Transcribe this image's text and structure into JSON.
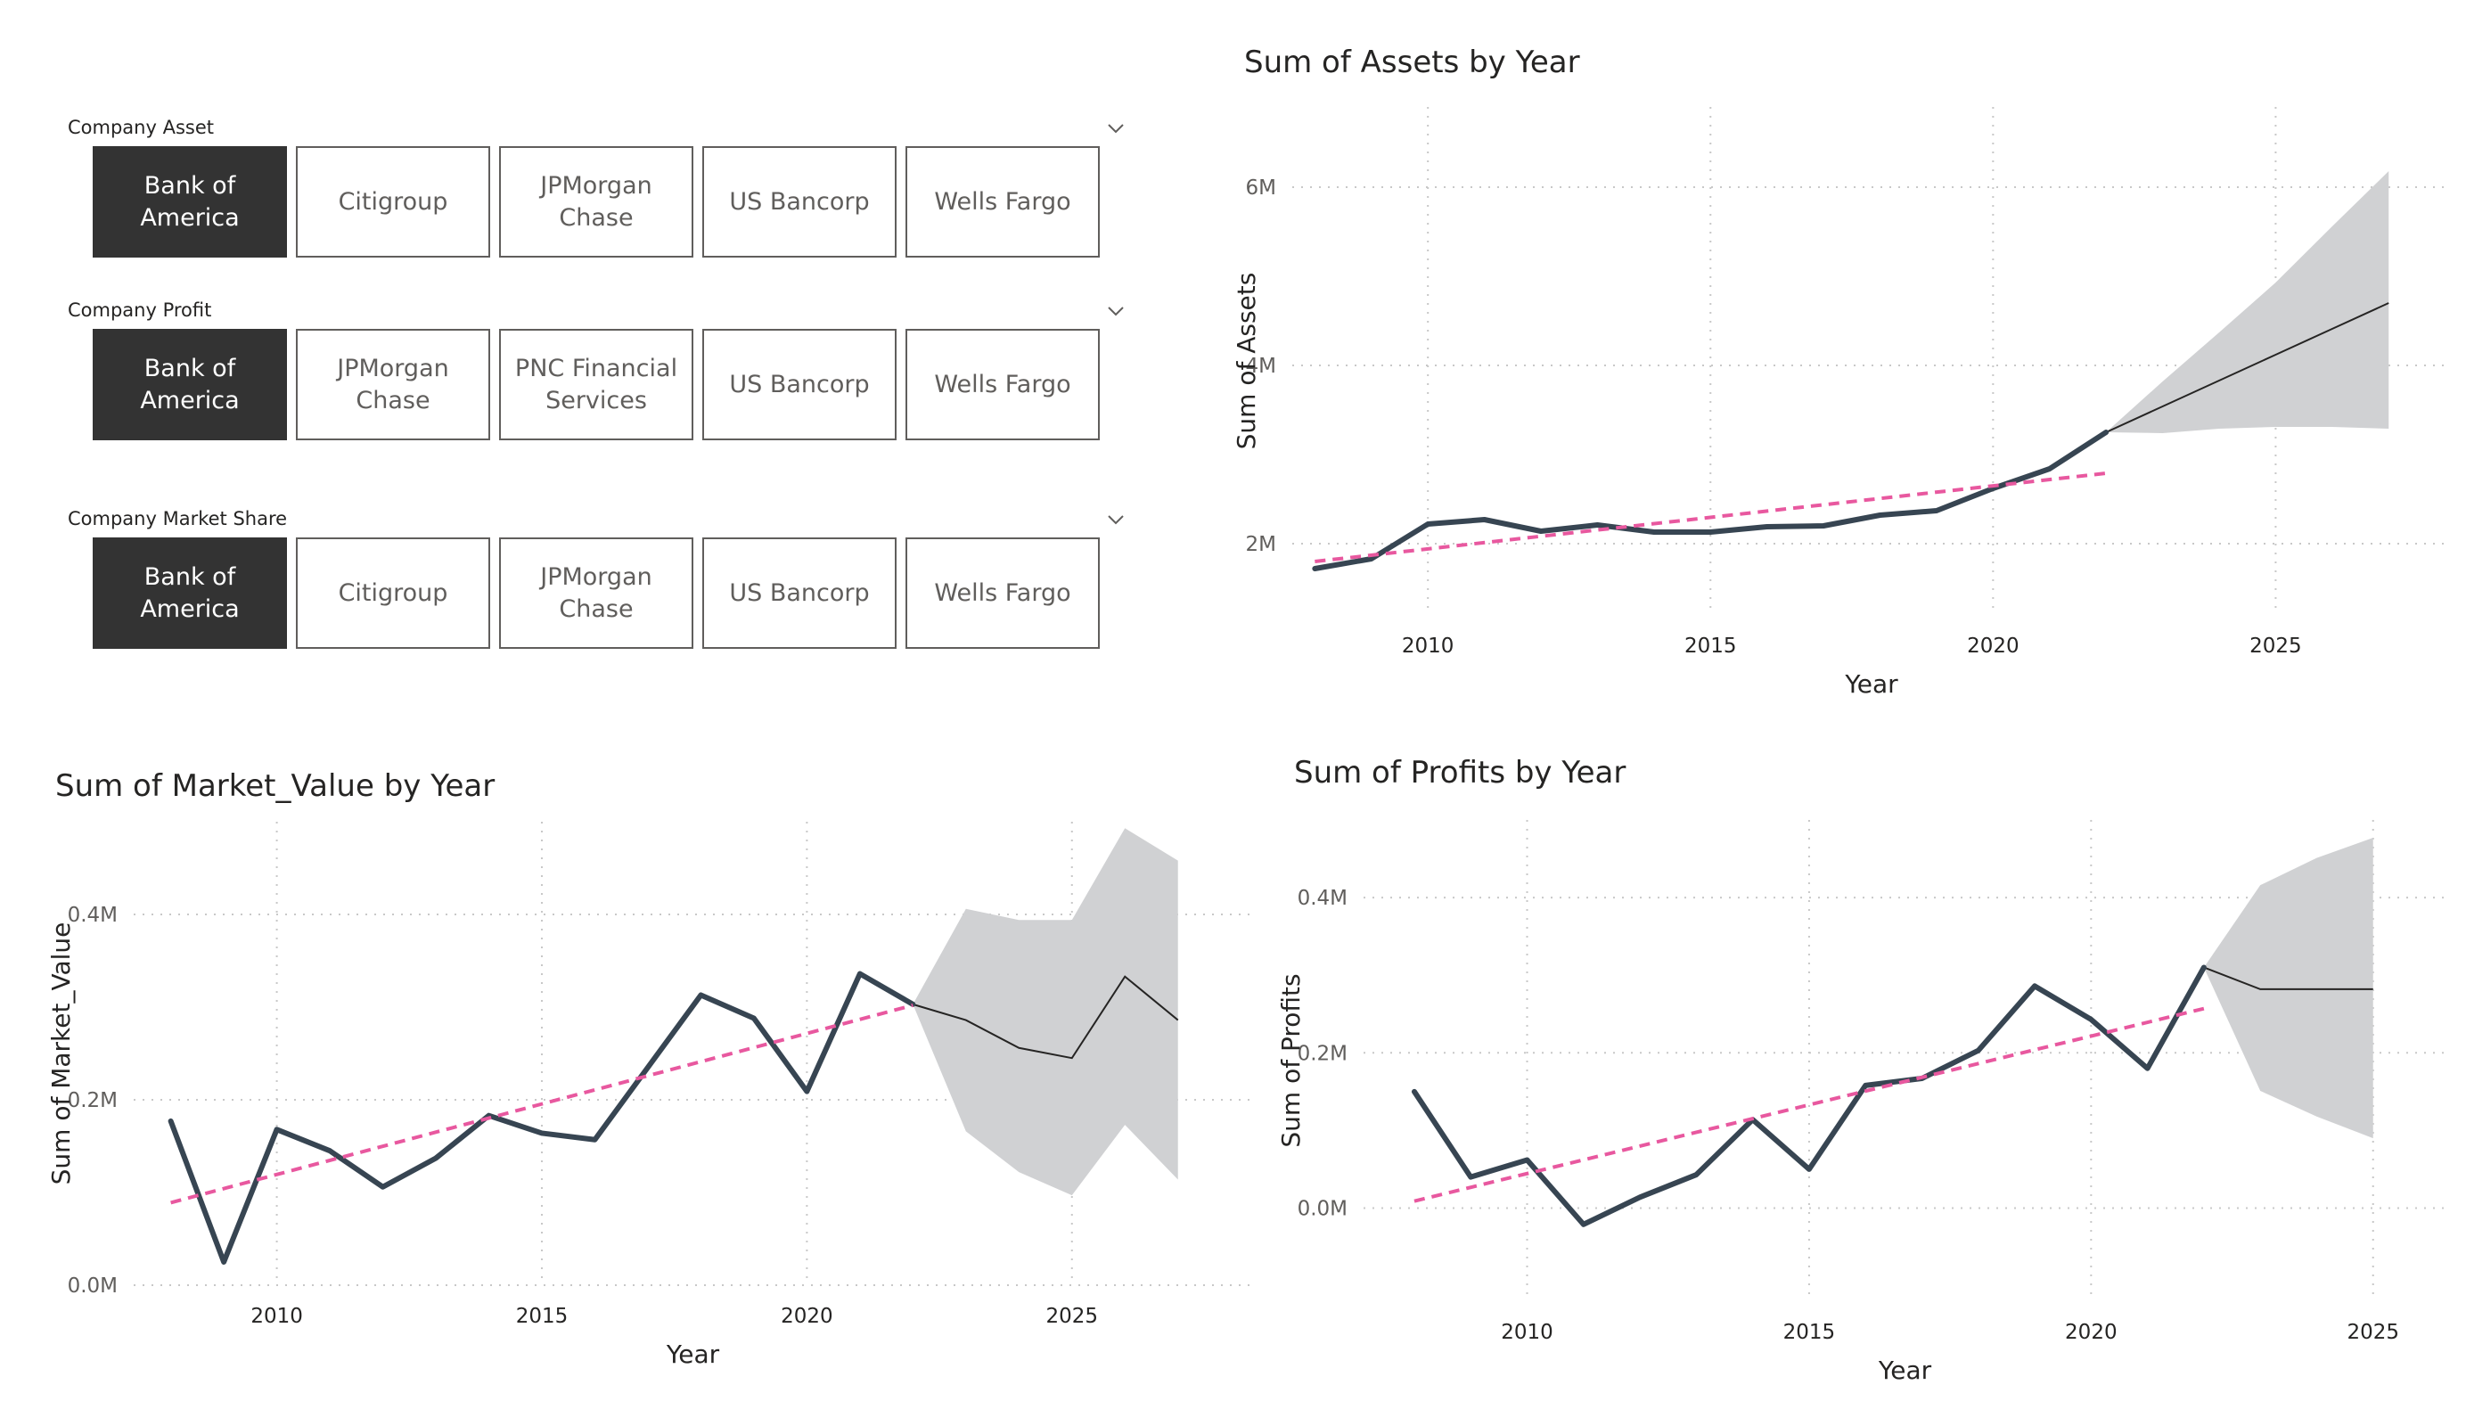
{
  "slicers": [
    {
      "label": "Company Asset",
      "options": [
        "Bank of America",
        "Citigroup",
        "JPMorgan Chase",
        "US Bancorp",
        "Wells Fargo"
      ],
      "selected": 0
    },
    {
      "label": "Company Profit",
      "options": [
        "Bank of America",
        "JPMorgan Chase",
        "PNC Financial Services",
        "US Bancorp",
        "Wells Fargo"
      ],
      "selected": 0
    },
    {
      "label": "Company Market Share",
      "options": [
        "Bank of America",
        "Citigroup",
        "JPMorgan Chase",
        "US Bancorp",
        "Wells Fargo"
      ],
      "selected": 0
    }
  ],
  "colors": {
    "line": "#374552",
    "trend": "#E8589F",
    "forecast_band": "#D0D1D3",
    "forecast_line": "#252423",
    "grid": "#C8C8C8"
  },
  "chart_data": [
    {
      "id": "assets",
      "type": "line",
      "title": "Sum of Assets by Year",
      "xlabel": "Year",
      "ylabel": "Sum of Assets",
      "xlim": [
        2007.6,
        2028.1
      ],
      "ylim": [
        1.2,
        6.9
      ],
      "x_ticks": [
        2010,
        2015,
        2020,
        2025
      ],
      "y_ticks": [
        {
          "v": 2,
          "label": "2M"
        },
        {
          "v": 4,
          "label": "4M"
        },
        {
          "v": 6,
          "label": "6M"
        }
      ],
      "grid": true,
      "series": [
        {
          "x": [
            2008,
            2009,
            2010,
            2011,
            2012,
            2013,
            2014,
            2015,
            2016,
            2017,
            2018,
            2019,
            2020,
            2021,
            2022
          ],
          "y": [
            1.72,
            1.83,
            2.22,
            2.27,
            2.14,
            2.21,
            2.13,
            2.13,
            2.19,
            2.2,
            2.32,
            2.37,
            2.62,
            2.84,
            3.25
          ]
        }
      ],
      "trend": {
        "x": [
          2008,
          2022
        ],
        "y": [
          1.8,
          2.79
        ]
      },
      "forecast": {
        "x": [
          2022,
          2023,
          2024,
          2025,
          2026,
          2027
        ],
        "y": [
          3.25,
          3.54,
          3.83,
          4.12,
          4.41,
          4.7
        ],
        "lower": [
          3.25,
          3.24,
          3.29,
          3.31,
          3.31,
          3.29
        ],
        "upper": [
          3.25,
          3.82,
          4.37,
          4.93,
          5.56,
          6.18
        ]
      }
    },
    {
      "id": "market_value",
      "type": "line",
      "title": "Sum of Market_Value by Year",
      "xlabel": "Year",
      "ylabel": "Sum of Market_Value",
      "xlim": [
        2007.3,
        2028.4
      ],
      "ylim": [
        0.0,
        0.5
      ],
      "x_ticks": [
        2010,
        2015,
        2020,
        2025
      ],
      "y_ticks": [
        {
          "v": 0.0,
          "label": "0.0M"
        },
        {
          "v": 0.2,
          "label": "0.2M"
        },
        {
          "v": 0.4,
          "label": "0.4M"
        }
      ],
      "grid": true,
      "series": [
        {
          "x": [
            2008,
            2009,
            2010,
            2011,
            2012,
            2013,
            2014,
            2015,
            2016,
            2017,
            2018,
            2019,
            2020,
            2021,
            2022
          ],
          "y": [
            0.177,
            0.025,
            0.168,
            0.145,
            0.106,
            0.137,
            0.183,
            0.164,
            0.157,
            0.235,
            0.313,
            0.288,
            0.209,
            0.336,
            0.303
          ]
        }
      ],
      "trend": {
        "x": [
          2008,
          2022
        ],
        "y": [
          0.089,
          0.302
        ]
      },
      "forecast": {
        "x": [
          2022,
          2023,
          2024,
          2025,
          2026,
          2027
        ],
        "y": [
          0.303,
          0.286,
          0.256,
          0.245,
          0.333,
          0.286
        ],
        "lower": [
          0.303,
          0.166,
          0.122,
          0.097,
          0.173,
          0.114
        ],
        "upper": [
          0.303,
          0.406,
          0.394,
          0.394,
          0.493,
          0.458
        ]
      }
    },
    {
      "id": "profits",
      "type": "line",
      "title": "Sum of Profits by Year",
      "xlabel": "Year",
      "ylabel": "Sum of Profits",
      "xlim": [
        2007.1,
        2026.3
      ],
      "ylim": [
        -0.12,
        0.5
      ],
      "x_ticks": [
        2010,
        2015,
        2020,
        2025
      ],
      "y_ticks": [
        {
          "v": 0.0,
          "label": "0.0M"
        },
        {
          "v": 0.2,
          "label": "0.2M"
        },
        {
          "v": 0.4,
          "label": "0.4M"
        }
      ],
      "grid": true,
      "series": [
        {
          "x": [
            2008,
            2009,
            2010,
            2011,
            2012,
            2013,
            2014,
            2015,
            2016,
            2017,
            2018,
            2019,
            2020,
            2021,
            2022
          ],
          "y": [
            0.15,
            0.04,
            0.062,
            -0.021,
            0.014,
            0.043,
            0.114,
            0.05,
            0.158,
            0.167,
            0.203,
            0.286,
            0.243,
            0.18,
            0.31
          ]
        }
      ],
      "trend": {
        "x": [
          2008,
          2022
        ],
        "y": [
          0.009,
          0.257
        ]
      },
      "forecast": {
        "x": [
          2022,
          2023,
          2024,
          2025
        ],
        "y": [
          0.31,
          0.282,
          0.282,
          0.282
        ],
        "lower": [
          0.31,
          0.151,
          0.118,
          0.09
        ],
        "upper": [
          0.31,
          0.416,
          0.451,
          0.477
        ]
      }
    }
  ]
}
